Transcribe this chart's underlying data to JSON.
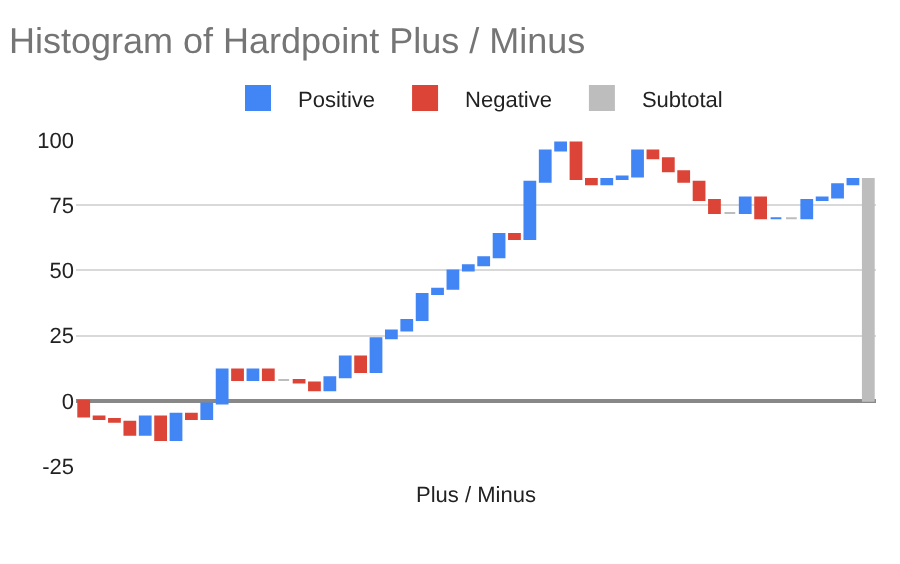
{
  "chart_data": {
    "type": "bar",
    "title": "Histogram of Hardpoint Plus / Minus",
    "xlabel": "Plus / Minus",
    "categories": [
      null,
      null,
      null,
      null,
      null,
      null,
      null,
      null,
      null,
      null,
      null,
      null,
      null,
      null,
      null,
      null,
      null,
      null,
      null,
      null,
      null,
      null,
      null,
      null,
      null,
      null,
      null,
      null,
      null,
      null,
      null,
      null,
      null,
      null,
      null,
      null,
      null,
      null,
      null,
      null,
      null,
      null,
      null,
      null,
      null,
      null,
      null,
      null,
      null,
      null,
      null,
      null
    ],
    "series": [
      {
        "name": "Positive",
        "color": "#4285f4",
        "values": [
          null,
          null,
          null,
          null,
          7,
          null,
          10,
          null,
          6,
          13,
          null,
          4,
          null,
          null,
          null,
          null,
          5,
          8,
          null,
          13,
          3,
          4,
          10,
          2,
          7,
          2,
          3,
          9,
          null,
          22,
          12,
          3,
          null,
          null,
          2,
          1,
          10,
          null,
          null,
          null,
          null,
          null,
          null,
          6,
          null,
          0,
          null,
          7,
          1,
          5,
          2,
          null
        ],
        "base": [
          null,
          null,
          null,
          null,
          -13,
          null,
          -15,
          null,
          -7,
          -1,
          null,
          8,
          null,
          null,
          null,
          null,
          4,
          9,
          null,
          11,
          24,
          27,
          31,
          41,
          43,
          50,
          52,
          55,
          null,
          62,
          84,
          96,
          null,
          null,
          83,
          85,
          86,
          null,
          null,
          null,
          null,
          null,
          null,
          72,
          null,
          70,
          null,
          70,
          77,
          78,
          83,
          null
        ]
      },
      {
        "name": "Negative",
        "color": "#db4437",
        "values": [
          -6,
          -1,
          -1,
          -5,
          null,
          -9,
          null,
          -2,
          null,
          null,
          -4,
          null,
          -4,
          null,
          -1,
          -3,
          null,
          null,
          -6,
          null,
          null,
          null,
          null,
          null,
          null,
          null,
          null,
          null,
          -2,
          null,
          null,
          null,
          -14,
          -2,
          null,
          null,
          null,
          -3,
          -5,
          -4,
          -7,
          -5,
          null,
          null,
          -8,
          null,
          null,
          null,
          null,
          null,
          null,
          null
        ],
        "base": [
          0,
          -6,
          -7,
          -8,
          null,
          -6,
          null,
          -5,
          null,
          null,
          12,
          null,
          12,
          null,
          8,
          7,
          null,
          null,
          17,
          null,
          null,
          null,
          null,
          null,
          null,
          null,
          null,
          null,
          64,
          null,
          null,
          null,
          99,
          85,
          null,
          null,
          null,
          96,
          93,
          88,
          84,
          77,
          null,
          null,
          78,
          null,
          null,
          null,
          null,
          null,
          null,
          null
        ]
      },
      {
        "name": "Subtotal",
        "color": "#bdbdbd",
        "values": [
          null,
          null,
          null,
          null,
          null,
          null,
          null,
          null,
          null,
          null,
          null,
          null,
          null,
          0,
          null,
          null,
          null,
          null,
          null,
          null,
          null,
          null,
          null,
          null,
          null,
          null,
          null,
          null,
          null,
          null,
          null,
          null,
          null,
          null,
          null,
          null,
          null,
          null,
          null,
          null,
          null,
          null,
          0,
          null,
          null,
          null,
          0,
          null,
          null,
          null,
          null,
          85
        ],
        "base": [
          null,
          null,
          null,
          null,
          null,
          null,
          null,
          null,
          null,
          null,
          null,
          null,
          null,
          8,
          null,
          null,
          null,
          null,
          null,
          null,
          null,
          null,
          null,
          null,
          null,
          null,
          null,
          null,
          null,
          null,
          null,
          null,
          null,
          null,
          null,
          null,
          null,
          null,
          null,
          null,
          null,
          null,
          72,
          null,
          null,
          null,
          70,
          null,
          null,
          null,
          null,
          0
        ]
      }
    ],
    "ylim": [
      -25,
      100
    ],
    "yticks": [
      -25,
      0,
      25,
      50,
      75,
      100
    ],
    "grid": "y",
    "legend": "top",
    "tick_labels": "y"
  }
}
